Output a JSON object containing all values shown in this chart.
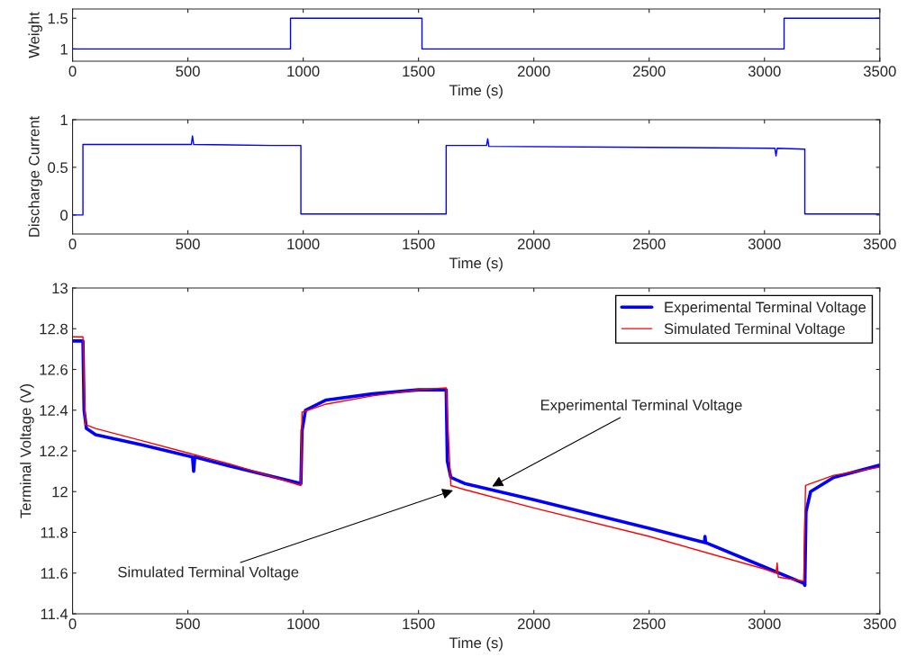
{
  "chart_data": [
    {
      "type": "line",
      "xlabel": "Time (s)",
      "ylabel": "Weight",
      "xlim": [
        0,
        3500
      ],
      "xticks": [
        0,
        500,
        1000,
        1500,
        2000,
        2500,
        3000,
        3500
      ],
      "ylim": [
        0.8,
        1.65
      ],
      "yticks": [
        1,
        1.5
      ],
      "grid": false,
      "legend": false,
      "series": [
        {
          "color": "#0000ff",
          "x": [
            0,
            945,
            945,
            1515,
            1515,
            3085,
            3085,
            3500
          ],
          "values": [
            1,
            1,
            1.5,
            1.5,
            1,
            1,
            1.5,
            1.5
          ]
        }
      ]
    },
    {
      "type": "line",
      "xlabel": "Time (s)",
      "ylabel": "Discharge Current",
      "xlim": [
        0,
        3500
      ],
      "xticks": [
        0,
        500,
        1000,
        1500,
        2000,
        2500,
        3000,
        3500
      ],
      "ylim": [
        -0.2,
        1
      ],
      "yticks": [
        0,
        0.5,
        1
      ],
      "grid": false,
      "legend": false,
      "series": [
        {
          "color": "#0000ff",
          "x": [
            0,
            45,
            45,
            300,
            515,
            520,
            525,
            860,
            990,
            990,
            1300,
            1620,
            1620,
            1795,
            1800,
            1805,
            2500,
            3045,
            3050,
            3055,
            3175,
            3175,
            3500
          ],
          "values": [
            0,
            0,
            0.74,
            0.74,
            0.74,
            0.83,
            0.74,
            0.73,
            0.73,
            0.01,
            0.01,
            0.01,
            0.73,
            0.73,
            0.8,
            0.72,
            0.71,
            0.7,
            0.62,
            0.7,
            0.69,
            0.01,
            0.01
          ]
        }
      ]
    },
    {
      "type": "line",
      "xlabel": "Time (s)",
      "ylabel": "Terminal Voltage (V)",
      "xlim": [
        0,
        3500
      ],
      "xticks": [
        0,
        500,
        1000,
        1500,
        2000,
        2500,
        3000,
        3500
      ],
      "ylim": [
        11.4,
        13
      ],
      "yticks": [
        11.4,
        11.6,
        11.8,
        12,
        12.2,
        12.4,
        12.6,
        12.8,
        13
      ],
      "grid": false,
      "legend": "top right",
      "annotations": [
        {
          "text": "Experimental Terminal Voltage",
          "x": 1810,
          "y": 12.02
        },
        {
          "text": "Simulated Terminal Voltage",
          "x": 1660,
          "y": 12.01
        }
      ],
      "series": [
        {
          "name": "Experimental Terminal Voltage",
          "color": "#0000ff",
          "x": [
            0,
            45,
            50,
            60,
            100,
            300,
            520,
            525,
            530,
            700,
            990,
            995,
            1010,
            1100,
            1300,
            1500,
            1620,
            1625,
            1640,
            1700,
            2000,
            2500,
            2740,
            2742,
            2745,
            3000,
            3170,
            3175,
            3180,
            3200,
            3300,
            3500
          ],
          "values": [
            12.74,
            12.74,
            12.4,
            12.31,
            12.28,
            12.23,
            12.17,
            12.1,
            12.17,
            12.12,
            12.04,
            12.3,
            12.4,
            12.45,
            12.48,
            12.5,
            12.5,
            12.15,
            12.07,
            12.04,
            11.96,
            11.82,
            11.75,
            11.78,
            11.75,
            11.63,
            11.55,
            11.54,
            11.9,
            12.0,
            12.07,
            12.13
          ]
        },
        {
          "name": "Simulated Terminal Voltage",
          "color": "#ff0000",
          "x": [
            0,
            45,
            55,
            100,
            300,
            500,
            700,
            990,
            995,
            1100,
            1300,
            1500,
            1620,
            1640,
            1700,
            2000,
            2500,
            3000,
            3050,
            3055,
            3060,
            3170,
            3178,
            3300,
            3500
          ],
          "values": [
            12.76,
            12.76,
            12.33,
            12.31,
            12.25,
            12.19,
            12.13,
            12.03,
            12.39,
            12.43,
            12.47,
            12.5,
            12.51,
            12.03,
            12.01,
            11.92,
            11.78,
            11.62,
            11.6,
            11.65,
            11.58,
            11.56,
            12.03,
            12.08,
            12.12
          ]
        }
      ]
    }
  ]
}
